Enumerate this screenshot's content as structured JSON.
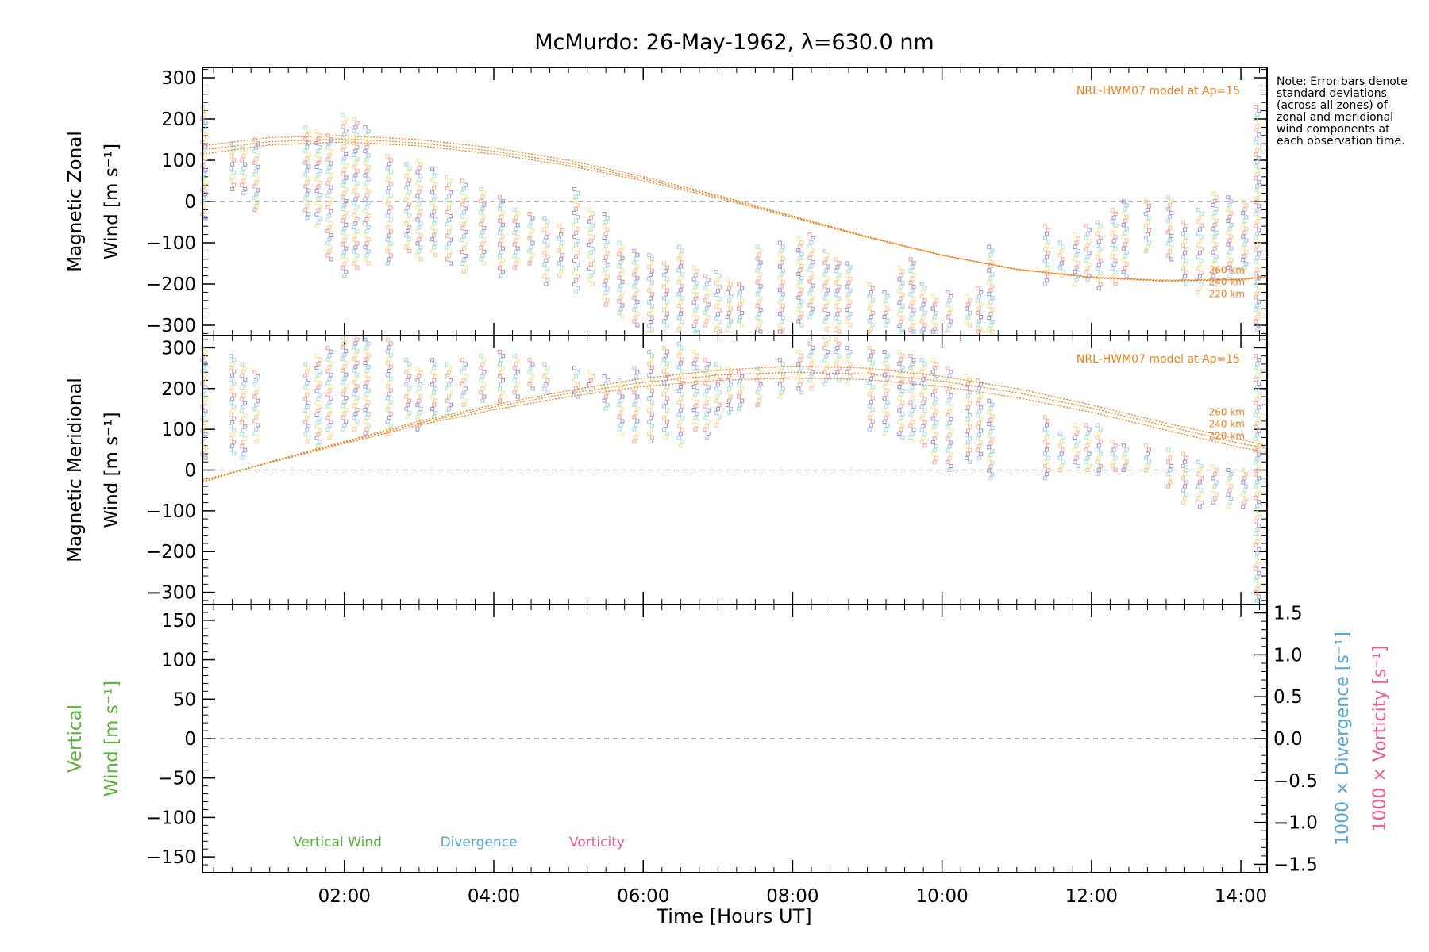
{
  "chart_data": {
    "type": "scatter",
    "title": "McMurdo: 26-May-1962, λ=630.0 nm",
    "xlabel": "Time [Hours UT]",
    "xlim": [
      0.1,
      14.35
    ],
    "x_ticks": [
      2,
      4,
      6,
      8,
      10,
      12,
      14
    ],
    "x_tick_labels": [
      "02:00",
      "04:00",
      "06:00",
      "08:00",
      "10:00",
      "12:00",
      "14:00"
    ],
    "note": "Note: Error bars denote standard deviations (across all zones) of zonal and meridional wind components at each observation time.",
    "panels": [
      {
        "id": "zonal",
        "ylabel_line1": "Magnetic Zonal",
        "ylabel_line2": "Wind [m s⁻¹]",
        "ylim": [
          -325,
          325
        ],
        "y_ticks": [
          300,
          200,
          100,
          0,
          -100,
          -200,
          -300
        ],
        "y_tick_labels": [
          "300",
          "200",
          "100",
          "0",
          "−100",
          "−200",
          "−300"
        ],
        "model_label": "NRL-HWM07 model at Ap=15",
        "model_altitude_labels": [
          "260 km",
          "240 km",
          "220 km"
        ],
        "model_curves": [
          {
            "name": "260 km",
            "x": [
              0.1,
              1,
              2,
              3,
              4,
              5,
              6,
              7,
              8,
              9,
              10,
              11,
              12,
              13,
              14,
              14.35
            ],
            "y": [
              135,
              155,
              160,
              150,
              130,
              100,
              60,
              15,
              -35,
              -85,
              -130,
              -165,
              -185,
              -193,
              -190,
              -183
            ]
          },
          {
            "name": "240 km",
            "x": [
              0.1,
              1,
              2,
              3,
              4,
              5,
              6,
              7,
              8,
              9,
              10,
              11,
              12,
              13,
              14,
              14.35
            ],
            "y": [
              125,
              145,
              152,
              142,
              122,
              93,
              55,
              12,
              -37,
              -86,
              -130,
              -164,
              -184,
              -192,
              -189,
              -182
            ]
          },
          {
            "name": "220 km",
            "x": [
              0.1,
              1,
              2,
              3,
              4,
              5,
              6,
              7,
              8,
              9,
              10,
              11,
              12,
              13,
              14,
              14.35
            ],
            "y": [
              115,
              137,
              144,
              135,
              115,
              87,
              50,
              8,
              -39,
              -87,
              -131,
              -164,
              -183,
              -191,
              -188,
              -181
            ]
          }
        ],
        "observations": [
          {
            "x": 0.12,
            "lo": -40,
            "hi": 230
          },
          {
            "x": 0.5,
            "lo": 30,
            "hi": 140
          },
          {
            "x": 0.65,
            "lo": 20,
            "hi": 130
          },
          {
            "x": 0.82,
            "lo": -20,
            "hi": 150
          },
          {
            "x": 1.5,
            "lo": -40,
            "hi": 180
          },
          {
            "x": 1.65,
            "lo": -60,
            "hi": 170
          },
          {
            "x": 1.8,
            "lo": -140,
            "hi": 160
          },
          {
            "x": 2.0,
            "lo": -180,
            "hi": 210
          },
          {
            "x": 2.15,
            "lo": -160,
            "hi": 200
          },
          {
            "x": 2.3,
            "lo": -150,
            "hi": 180
          },
          {
            "x": 2.6,
            "lo": -150,
            "hi": 110
          },
          {
            "x": 2.85,
            "lo": -120,
            "hi": 90
          },
          {
            "x": 3.0,
            "lo": -140,
            "hi": 100
          },
          {
            "x": 3.2,
            "lo": -130,
            "hi": 80
          },
          {
            "x": 3.4,
            "lo": -150,
            "hi": 60
          },
          {
            "x": 3.6,
            "lo": -170,
            "hi": 50
          },
          {
            "x": 3.85,
            "lo": -150,
            "hi": 30
          },
          {
            "x": 4.1,
            "lo": -180,
            "hi": 10
          },
          {
            "x": 4.3,
            "lo": -160,
            "hi": -20
          },
          {
            "x": 4.5,
            "lo": -150,
            "hi": -30
          },
          {
            "x": 4.7,
            "lo": -200,
            "hi": -40
          },
          {
            "x": 4.9,
            "lo": -180,
            "hi": -60
          },
          {
            "x": 5.1,
            "lo": -220,
            "hi": 30
          },
          {
            "x": 5.3,
            "lo": -200,
            "hi": -20
          },
          {
            "x": 5.5,
            "lo": -250,
            "hi": -30
          },
          {
            "x": 5.7,
            "lo": -280,
            "hi": -100
          },
          {
            "x": 5.9,
            "lo": -300,
            "hi": -120
          },
          {
            "x": 6.1,
            "lo": -320,
            "hi": -130
          },
          {
            "x": 6.3,
            "lo": -300,
            "hi": -150
          },
          {
            "x": 6.5,
            "lo": -310,
            "hi": -110
          },
          {
            "x": 6.7,
            "lo": -320,
            "hi": -160
          },
          {
            "x": 6.85,
            "lo": -300,
            "hi": -180
          },
          {
            "x": 7.0,
            "lo": -320,
            "hi": -170
          },
          {
            "x": 7.15,
            "lo": -310,
            "hi": -190
          },
          {
            "x": 7.3,
            "lo": -300,
            "hi": -200
          },
          {
            "x": 7.55,
            "lo": -320,
            "hi": -110
          },
          {
            "x": 7.85,
            "lo": -330,
            "hi": -100
          },
          {
            "x": 8.1,
            "lo": -300,
            "hi": -90
          },
          {
            "x": 8.25,
            "lo": -280,
            "hi": -80
          },
          {
            "x": 8.45,
            "lo": -310,
            "hi": -120
          },
          {
            "x": 8.6,
            "lo": -320,
            "hi": -140
          },
          {
            "x": 8.75,
            "lo": -300,
            "hi": -150
          },
          {
            "x": 9.05,
            "lo": -320,
            "hi": -200
          },
          {
            "x": 9.25,
            "lo": -300,
            "hi": -220
          },
          {
            "x": 9.45,
            "lo": -320,
            "hi": -160
          },
          {
            "x": 9.6,
            "lo": -330,
            "hi": -140
          },
          {
            "x": 9.75,
            "lo": -320,
            "hi": -200
          },
          {
            "x": 9.9,
            "lo": -330,
            "hi": -230
          },
          {
            "x": 10.1,
            "lo": -310,
            "hi": -220
          },
          {
            "x": 10.35,
            "lo": -300,
            "hi": -230
          },
          {
            "x": 10.5,
            "lo": -330,
            "hi": -210
          },
          {
            "x": 10.65,
            "lo": -320,
            "hi": -110
          },
          {
            "x": 11.4,
            "lo": -200,
            "hi": -60
          },
          {
            "x": 11.6,
            "lo": -180,
            "hi": -100
          },
          {
            "x": 11.8,
            "lo": -200,
            "hi": -80
          },
          {
            "x": 11.95,
            "lo": -190,
            "hi": -60
          },
          {
            "x": 12.1,
            "lo": -210,
            "hi": -50
          },
          {
            "x": 12.3,
            "lo": -200,
            "hi": -20
          },
          {
            "x": 12.45,
            "lo": -180,
            "hi": 0
          },
          {
            "x": 12.75,
            "lo": -120,
            "hi": 0
          },
          {
            "x": 13.05,
            "lo": -140,
            "hi": 10
          },
          {
            "x": 13.25,
            "lo": -200,
            "hi": -50
          },
          {
            "x": 13.45,
            "lo": -220,
            "hi": -20
          },
          {
            "x": 13.65,
            "lo": -200,
            "hi": 20
          },
          {
            "x": 13.85,
            "lo": -180,
            "hi": 10
          },
          {
            "x": 14.05,
            "lo": -170,
            "hi": 0
          },
          {
            "x": 14.22,
            "lo": -310,
            "hi": 230
          }
        ]
      },
      {
        "id": "meridional",
        "ylabel_line1": "Magnetic Meridional",
        "ylabel_line2": "Wind [m s⁻¹]",
        "ylim": [
          -330,
          330
        ],
        "y_ticks": [
          300,
          200,
          100,
          0,
          -100,
          -200,
          -300
        ],
        "y_tick_labels": [
          "300",
          "200",
          "100",
          "0",
          "−100",
          "−200",
          "−300"
        ],
        "model_label": "NRL-HWM07 model at Ap=15",
        "model_altitude_labels": [
          "260 km",
          "240 km",
          "220 km"
        ],
        "model_curves": [
          {
            "name": "260 km",
            "x": [
              0.1,
              1,
              2,
              3,
              4,
              5,
              6,
              7,
              8,
              9,
              10,
              11,
              12,
              13,
              14,
              14.35
            ],
            "y": [
              -30,
              20,
              70,
              120,
              160,
              195,
              225,
              245,
              255,
              250,
              230,
              200,
              160,
              115,
              75,
              60
            ]
          },
          {
            "name": "240 km",
            "x": [
              0.1,
              1,
              2,
              3,
              4,
              5,
              6,
              7,
              8,
              9,
              10,
              11,
              12,
              13,
              14,
              14.35
            ],
            "y": [
              -28,
              20,
              68,
              115,
              155,
              188,
              215,
              233,
              240,
              236,
              218,
              190,
              152,
              108,
              65,
              52
            ]
          },
          {
            "name": "220 km",
            "x": [
              0.1,
              1,
              2,
              3,
              4,
              5,
              6,
              7,
              8,
              9,
              10,
              11,
              12,
              13,
              14,
              14.35
            ],
            "y": [
              -25,
              18,
              65,
              110,
              148,
              180,
              205,
              220,
              226,
              222,
              205,
              178,
              142,
              98,
              55,
              44
            ]
          }
        ],
        "observations": [
          {
            "x": 0.12,
            "lo": 30,
            "hi": 300
          },
          {
            "x": 0.5,
            "lo": 40,
            "hi": 280
          },
          {
            "x": 0.65,
            "lo": 30,
            "hi": 260
          },
          {
            "x": 0.82,
            "lo": 70,
            "hi": 240
          },
          {
            "x": 1.5,
            "lo": 70,
            "hi": 260
          },
          {
            "x": 1.65,
            "lo": 50,
            "hi": 280
          },
          {
            "x": 1.8,
            "lo": 80,
            "hi": 300
          },
          {
            "x": 2.0,
            "lo": 100,
            "hi": 330
          },
          {
            "x": 2.15,
            "lo": 100,
            "hi": 330
          },
          {
            "x": 2.3,
            "lo": 90,
            "hi": 320
          },
          {
            "x": 2.6,
            "lo": 90,
            "hi": 320
          },
          {
            "x": 2.85,
            "lo": 130,
            "hi": 270
          },
          {
            "x": 3.0,
            "lo": 100,
            "hi": 250
          },
          {
            "x": 3.2,
            "lo": 120,
            "hi": 270
          },
          {
            "x": 3.4,
            "lo": 130,
            "hi": 260
          },
          {
            "x": 3.6,
            "lo": 160,
            "hi": 270
          },
          {
            "x": 3.85,
            "lo": 170,
            "hi": 280
          },
          {
            "x": 4.1,
            "lo": 170,
            "hi": 290
          },
          {
            "x": 4.3,
            "lo": 180,
            "hi": 280
          },
          {
            "x": 4.5,
            "lo": 200,
            "hi": 270
          },
          {
            "x": 4.7,
            "lo": 190,
            "hi": 260
          },
          {
            "x": 5.1,
            "lo": 180,
            "hi": 250
          },
          {
            "x": 5.3,
            "lo": 190,
            "hi": 240
          },
          {
            "x": 5.5,
            "lo": 150,
            "hi": 230
          },
          {
            "x": 5.7,
            "lo": 90,
            "hi": 220
          },
          {
            "x": 5.9,
            "lo": 70,
            "hi": 250
          },
          {
            "x": 6.1,
            "lo": 70,
            "hi": 290
          },
          {
            "x": 6.3,
            "lo": 80,
            "hi": 300
          },
          {
            "x": 6.5,
            "lo": 60,
            "hi": 310
          },
          {
            "x": 6.7,
            "lo": 100,
            "hi": 290
          },
          {
            "x": 6.85,
            "lo": 80,
            "hi": 270
          },
          {
            "x": 7.0,
            "lo": 110,
            "hi": 260
          },
          {
            "x": 7.15,
            "lo": 140,
            "hi": 250
          },
          {
            "x": 7.3,
            "lo": 150,
            "hi": 240
          },
          {
            "x": 7.55,
            "lo": 160,
            "hi": 250
          },
          {
            "x": 7.85,
            "lo": 180,
            "hi": 270
          },
          {
            "x": 8.1,
            "lo": 190,
            "hi": 290
          },
          {
            "x": 8.25,
            "lo": 200,
            "hi": 310
          },
          {
            "x": 8.45,
            "lo": 210,
            "hi": 330
          },
          {
            "x": 8.6,
            "lo": 220,
            "hi": 320
          },
          {
            "x": 8.75,
            "lo": 210,
            "hi": 300
          },
          {
            "x": 9.05,
            "lo": 100,
            "hi": 300
          },
          {
            "x": 9.25,
            "lo": 90,
            "hi": 290
          },
          {
            "x": 9.45,
            "lo": 80,
            "hi": 290
          },
          {
            "x": 9.6,
            "lo": 70,
            "hi": 280
          },
          {
            "x": 9.75,
            "lo": 60,
            "hi": 270
          },
          {
            "x": 9.9,
            "lo": 20,
            "hi": 270
          },
          {
            "x": 10.1,
            "lo": 0,
            "hi": 250
          },
          {
            "x": 10.35,
            "lo": 20,
            "hi": 230
          },
          {
            "x": 10.5,
            "lo": 30,
            "hi": 220
          },
          {
            "x": 10.65,
            "lo": -20,
            "hi": 170
          },
          {
            "x": 11.4,
            "lo": -20,
            "hi": 130
          },
          {
            "x": 11.6,
            "lo": 0,
            "hi": 90
          },
          {
            "x": 11.8,
            "lo": 10,
            "hi": 110
          },
          {
            "x": 11.95,
            "lo": 0,
            "hi": 110
          },
          {
            "x": 12.1,
            "lo": -10,
            "hi": 110
          },
          {
            "x": 12.3,
            "lo": 0,
            "hi": 70
          },
          {
            "x": 12.45,
            "lo": 0,
            "hi": 60
          },
          {
            "x": 12.75,
            "lo": 0,
            "hi": 60
          },
          {
            "x": 13.05,
            "lo": -40,
            "hi": 50
          },
          {
            "x": 13.25,
            "lo": -80,
            "hi": 40
          },
          {
            "x": 13.45,
            "lo": -90,
            "hi": 20
          },
          {
            "x": 13.65,
            "lo": -80,
            "hi": 10
          },
          {
            "x": 13.85,
            "lo": -90,
            "hi": 0
          },
          {
            "x": 14.05,
            "lo": -90,
            "hi": 0
          },
          {
            "x": 14.22,
            "lo": -330,
            "hi": 280
          }
        ]
      },
      {
        "id": "vertical",
        "ylabel_line1": "Vertical",
        "ylabel_line2": "Wind [m s⁻¹]",
        "ylim": [
          -170,
          170
        ],
        "y_ticks": [
          150,
          100,
          50,
          0,
          -50,
          -100,
          -150
        ],
        "y_tick_labels": [
          "150",
          "100",
          "50",
          "0",
          "−50",
          "−100",
          "−150"
        ],
        "right_ylim": [
          -1.6,
          1.6
        ],
        "right_y_ticks": [
          1.5,
          1.0,
          0.5,
          0.0,
          -0.5,
          -1.0,
          -1.5
        ],
        "right_y_tick_labels": [
          "1.5",
          "1.0",
          "0.5",
          "0.0",
          "−0.5",
          "−1.0",
          "−1.5"
        ],
        "right_ylabel_divergence": "1000 × Divergence [s⁻¹]",
        "right_ylabel_vorticity": "1000 × Vorticity [s⁻¹]",
        "legend": [
          "Vertical Wind",
          "Divergence",
          "Vorticity"
        ],
        "series": []
      }
    ]
  },
  "colors": {
    "model": "#f07f1e",
    "vertical": "#5ab43c",
    "divergence": "#55a9d6",
    "vorticity": "#ee5a8c",
    "zero_line": "#808080",
    "obs_palette": [
      "#9a9ad8",
      "#a8c8f0",
      "#a8e6cf",
      "#f3e79e",
      "#f9c99b",
      "#f6a596"
    ]
  }
}
